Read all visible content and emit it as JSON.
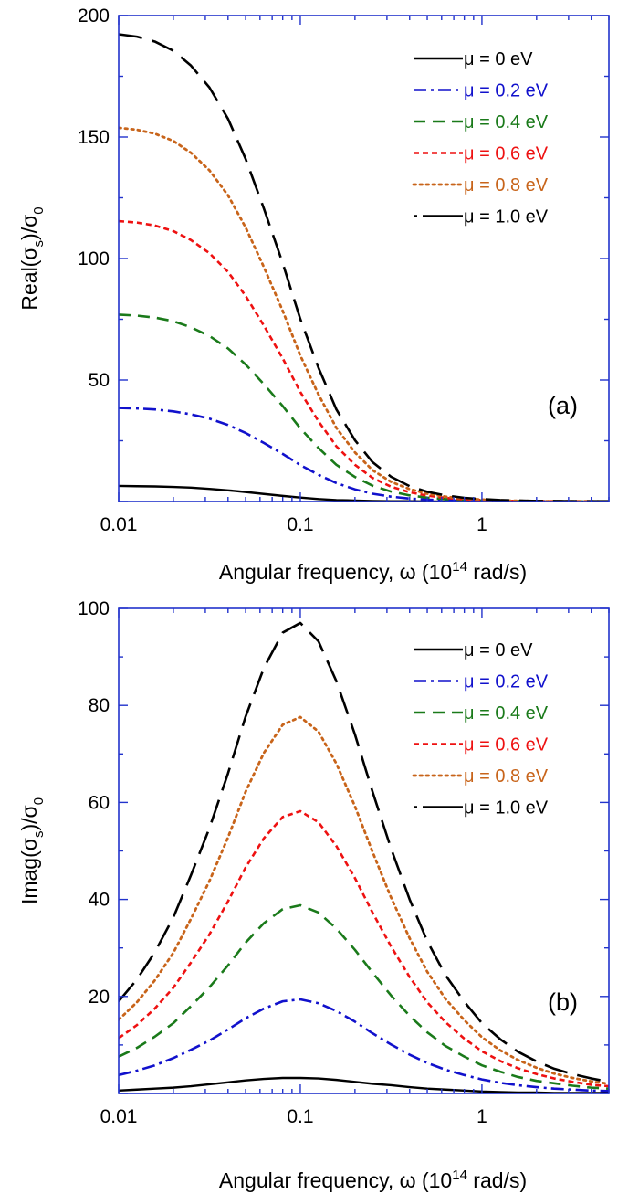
{
  "colors": {
    "axis": "#2233cc",
    "mu0": "#000000",
    "mu02": "#1111cc",
    "mu04": "#1a7a1a",
    "mu06": "#ee1111",
    "mu08": "#c8641a",
    "mu10": "#000000"
  },
  "chart_data": [
    {
      "type": "line",
      "panel_label": "(a)",
      "xlabel": {
        "main": "Angular frequency, ω (10",
        "sup": "14",
        "tail": " rad/s)"
      },
      "ylabel": {
        "pre": "Real(σ",
        "sub1": "s",
        "mid": ")/σ",
        "sub2": "0"
      },
      "xscale": "log",
      "xlim": [
        0.01,
        5
      ],
      "ylim": [
        0,
        200
      ],
      "xticks": [
        {
          "value": 0.01,
          "label": "0.01"
        },
        {
          "value": 0.1,
          "label": "0.1"
        },
        {
          "value": 1,
          "label": "1"
        }
      ],
      "yticks": [
        {
          "value": 50,
          "label": "50"
        },
        {
          "value": 100,
          "label": "100"
        },
        {
          "value": 150,
          "label": "150"
        },
        {
          "value": 200,
          "label": "200"
        }
      ],
      "legend_position": "top-right",
      "x": [
        0.01,
        0.0126,
        0.0158,
        0.02,
        0.025,
        0.0316,
        0.04,
        0.05,
        0.063,
        0.08,
        0.1,
        0.126,
        0.158,
        0.2,
        0.25,
        0.316,
        0.4,
        0.5,
        0.63,
        0.8,
        1.0,
        1.26,
        1.58,
        2.0,
        2.5,
        3.16,
        4.0,
        5.0
      ],
      "series": [
        {
          "name": "μ = 0 eV",
          "color": "#000000",
          "style": "solid",
          "width": 2.4,
          "values": [
            6.4,
            6.3,
            6.2,
            6.0,
            5.7,
            5.2,
            4.6,
            3.9,
            3.1,
            2.3,
            1.6,
            1.0,
            0.6,
            0.4,
            0.2,
            0.1,
            0.1,
            0.0,
            0.0,
            0.0,
            0.0,
            0.0,
            0.0,
            0.0,
            0.0,
            0.0,
            0.0,
            0.0
          ]
        },
        {
          "name": "μ = 0.2 eV",
          "color": "#1111cc",
          "style": "dashdot",
          "width": 2.6,
          "values": [
            38.5,
            38.3,
            37.9,
            37.1,
            35.9,
            34.1,
            31.5,
            28.2,
            24.1,
            19.6,
            15.0,
            11.0,
            7.6,
            5.0,
            3.2,
            2.0,
            1.2,
            0.8,
            0.5,
            0.3,
            0.2,
            0.1,
            0.1,
            0.1,
            0.0,
            0.0,
            0.0,
            0.0
          ]
        },
        {
          "name": "μ = 0.4 eV",
          "color": "#1a7a1a",
          "style": "dashed",
          "width": 2.6,
          "values": [
            76.9,
            76.5,
            75.7,
            74.2,
            71.7,
            68.1,
            63.0,
            56.4,
            48.3,
            39.3,
            30.1,
            22.0,
            15.1,
            10.1,
            6.5,
            4.1,
            2.5,
            1.6,
            1.0,
            0.6,
            0.4,
            0.3,
            0.2,
            0.1,
            0.1,
            0.1,
            0.0,
            0.0
          ]
        },
        {
          "name": "μ = 0.6 eV",
          "color": "#ee1111",
          "style": "shortdash",
          "width": 2.6,
          "values": [
            115.4,
            114.8,
            113.6,
            111.3,
            107.6,
            102.2,
            94.5,
            84.6,
            72.4,
            58.9,
            45.1,
            33.0,
            22.7,
            15.1,
            9.7,
            6.1,
            3.8,
            2.4,
            1.5,
            0.9,
            0.6,
            0.4,
            0.2,
            0.2,
            0.1,
            0.1,
            0.1,
            0.0
          ]
        },
        {
          "name": "μ = 0.8 eV",
          "color": "#c8641a",
          "style": "dotted",
          "width": 2.8,
          "values": [
            153.8,
            153.0,
            151.4,
            148.4,
            143.5,
            136.3,
            126.0,
            112.8,
            96.5,
            78.5,
            60.1,
            44.0,
            30.3,
            20.2,
            12.9,
            8.1,
            5.1,
            3.2,
            2.0,
            1.2,
            0.8,
            0.5,
            0.3,
            0.2,
            0.1,
            0.1,
            0.1,
            0.0
          ]
        },
        {
          "name": "μ = 1.0 eV",
          "color": "#000000",
          "style": "longdash",
          "width": 2.6,
          "values": [
            192.3,
            191.3,
            189.3,
            185.5,
            179.4,
            170.4,
            157.5,
            141.0,
            120.6,
            98.1,
            75.1,
            55.0,
            37.9,
            25.2,
            16.2,
            10.2,
            6.3,
            4.0,
            2.5,
            1.5,
            1.0,
            0.6,
            0.4,
            0.2,
            0.2,
            0.1,
            0.1,
            0.1
          ]
        }
      ]
    },
    {
      "type": "line",
      "panel_label": "(b)",
      "xlabel": {
        "main": "Angular frequency, ω (10",
        "sup": "14",
        "tail": " rad/s)"
      },
      "ylabel": {
        "pre": "Imag(σ",
        "sub1": "s",
        "mid": ")/σ",
        "sub2": "0"
      },
      "xscale": "log",
      "xlim": [
        0.01,
        5
      ],
      "ylim": [
        0,
        100
      ],
      "xticks": [
        {
          "value": 0.01,
          "label": "0.01"
        },
        {
          "value": 0.1,
          "label": "0.1"
        },
        {
          "value": 1,
          "label": "1"
        }
      ],
      "yticks": [
        {
          "value": 20,
          "label": "20"
        },
        {
          "value": 40,
          "label": "40"
        },
        {
          "value": 60,
          "label": "60"
        },
        {
          "value": 80,
          "label": "80"
        },
        {
          "value": 100,
          "label": "100"
        }
      ],
      "legend_position": "top-right",
      "x": [
        0.01,
        0.0126,
        0.0158,
        0.02,
        0.025,
        0.0316,
        0.04,
        0.05,
        0.063,
        0.08,
        0.1,
        0.126,
        0.158,
        0.2,
        0.25,
        0.316,
        0.4,
        0.5,
        0.63,
        0.8,
        1.0,
        1.26,
        1.58,
        2.0,
        2.5,
        3.16,
        4.0,
        5.0
      ],
      "series": [
        {
          "name": "μ = 0 eV",
          "color": "#000000",
          "style": "solid",
          "width": 2.4,
          "values": [
            0.6,
            0.8,
            1.0,
            1.2,
            1.5,
            1.9,
            2.3,
            2.7,
            3.0,
            3.2,
            3.2,
            3.1,
            2.8,
            2.4,
            2.0,
            1.7,
            1.3,
            1.0,
            0.8,
            0.6,
            0.4,
            0.3,
            0.2,
            0.2,
            0.1,
            0.1,
            0.1,
            0.1
          ]
        },
        {
          "name": "μ = 0.2 eV",
          "color": "#1111cc",
          "style": "dashdot",
          "width": 2.6,
          "values": [
            3.8,
            4.7,
            5.8,
            7.3,
            9.0,
            10.9,
            13.2,
            15.5,
            17.5,
            19.0,
            19.4,
            18.6,
            17.0,
            14.8,
            12.4,
            10.1,
            8.0,
            6.3,
            4.9,
            3.8,
            2.9,
            2.2,
            1.7,
            1.3,
            1.0,
            0.8,
            0.6,
            0.5
          ]
        },
        {
          "name": "μ = 0.4 eV",
          "color": "#1a7a1a",
          "style": "dashed",
          "width": 2.6,
          "values": [
            7.6,
            9.4,
            11.7,
            14.5,
            18.0,
            21.9,
            26.4,
            31.1,
            35.1,
            38.0,
            38.8,
            37.3,
            34.0,
            29.6,
            24.9,
            20.2,
            16.0,
            12.6,
            9.8,
            7.6,
            5.8,
            4.5,
            3.4,
            2.6,
            2.1,
            1.6,
            1.2,
            1.0
          ]
        },
        {
          "name": "μ = 0.6 eV",
          "color": "#ee1111",
          "style": "shortdash",
          "width": 2.6,
          "values": [
            11.4,
            14.1,
            17.5,
            21.8,
            27.0,
            32.8,
            39.6,
            46.6,
            52.6,
            57.0,
            58.2,
            55.9,
            51.0,
            44.4,
            37.3,
            30.3,
            24.0,
            18.8,
            14.7,
            11.3,
            8.7,
            6.7,
            5.2,
            4.0,
            3.1,
            2.4,
            1.8,
            1.5
          ]
        },
        {
          "name": "μ = 0.8 eV",
          "color": "#c8641a",
          "style": "dotted",
          "width": 2.8,
          "values": [
            15.2,
            18.8,
            23.3,
            29.0,
            36.0,
            43.8,
            52.8,
            62.2,
            70.2,
            76.0,
            77.6,
            74.6,
            68.0,
            59.2,
            49.8,
            40.4,
            32.0,
            25.1,
            19.5,
            15.1,
            11.6,
            8.9,
            6.9,
            5.3,
            4.1,
            3.2,
            2.5,
            2.0
          ]
        },
        {
          "name": "μ = 1.0 eV",
          "color": "#000000",
          "style": "longdash",
          "width": 2.6,
          "values": [
            19.0,
            23.5,
            29.1,
            36.3,
            45.0,
            54.7,
            66.0,
            77.7,
            87.7,
            95.0,
            97.0,
            93.2,
            85.0,
            74.0,
            62.2,
            50.5,
            40.0,
            31.4,
            24.4,
            18.9,
            14.5,
            11.2,
            8.6,
            6.6,
            5.1,
            4.0,
            3.1,
            2.4
          ]
        }
      ]
    }
  ]
}
